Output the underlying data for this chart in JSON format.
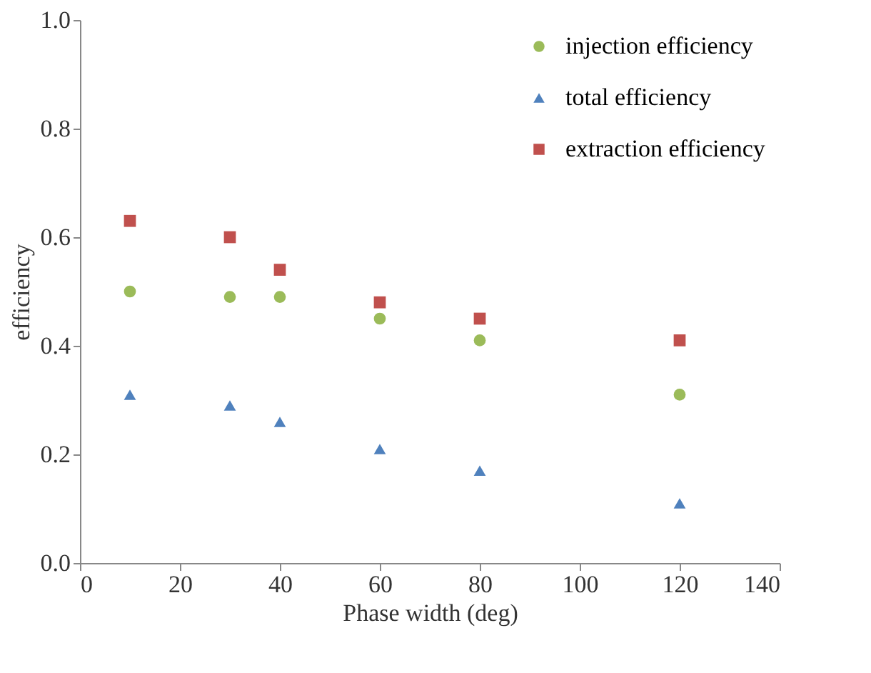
{
  "chart_data": {
    "type": "scatter",
    "xlabel": "Phase width (deg)",
    "ylabel": "efficiency",
    "x": [
      10,
      30,
      40,
      60,
      80,
      120
    ],
    "series": [
      {
        "name": "injection efficiency",
        "color": "#9bbb59",
        "marker": "circle",
        "values": [
          0.5,
          0.49,
          0.49,
          0.45,
          0.41,
          0.31
        ]
      },
      {
        "name": "total efficiency",
        "color": "#4f81bd",
        "marker": "triangle",
        "values": [
          0.31,
          0.29,
          0.26,
          0.21,
          0.17,
          0.11
        ]
      },
      {
        "name": "extraction efficiency",
        "color": "#c0504d",
        "marker": "square",
        "values": [
          0.63,
          0.6,
          0.54,
          0.48,
          0.45,
          0.41
        ]
      }
    ],
    "xlim": [
      0,
      140
    ],
    "xticks": [
      0,
      20,
      40,
      60,
      80,
      100,
      120,
      140
    ],
    "ylim": [
      0,
      1.0
    ],
    "yticks": [
      {
        "value": 0,
        "label": "0.0"
      },
      0.2,
      0.4,
      0.6,
      0.8,
      {
        "value": 1,
        "label": "1.0"
      }
    ],
    "grid": false,
    "legend": "top right"
  }
}
